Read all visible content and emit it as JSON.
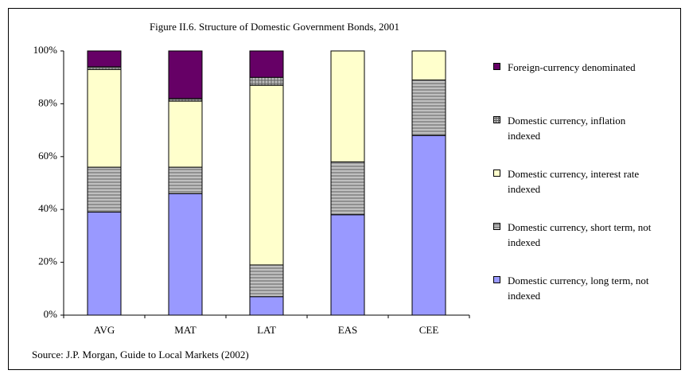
{
  "chart_data": {
    "type": "stacked_bar",
    "title": "Figure II.6. Structure of Domestic Government Bonds, 2001",
    "source": "Source: J.P. Morgan, Guide to Local Markets (2002)",
    "categories": [
      "AVG",
      "MAT",
      "LAT",
      "EAS",
      "CEE"
    ],
    "series": [
      {
        "name": "Domestic currency, long term, not indexed",
        "color": "#9999ff",
        "values": [
          39,
          46,
          7,
          38,
          68
        ]
      },
      {
        "name": "Domestic currency, short term, not indexed",
        "color": "#c0c0c0",
        "hatch": "horizontal",
        "values": [
          17,
          10,
          12,
          20,
          21
        ]
      },
      {
        "name": "Domestic currency, interest rate indexed",
        "color": "#ffffcc",
        "values": [
          37,
          25,
          68,
          42,
          11
        ]
      },
      {
        "name": "Domestic currency, inflation indexed",
        "color": "#c0c0c0",
        "hatch": "grid",
        "values": [
          1,
          1,
          3,
          0,
          0
        ]
      },
      {
        "name": "Foreign-currency denominated",
        "color": "#660066",
        "values": [
          6,
          18,
          10,
          0,
          0
        ]
      }
    ],
    "ylim": [
      0,
      100
    ],
    "yticks": [
      {
        "value": 0,
        "label": "0%"
      },
      {
        "value": 20,
        "label": "20%"
      },
      {
        "value": 40,
        "label": "40%"
      },
      {
        "value": 60,
        "label": "60%"
      },
      {
        "value": 80,
        "label": "80%"
      },
      {
        "value": 100,
        "label": "100%"
      }
    ],
    "grid": false,
    "legend": "right"
  }
}
